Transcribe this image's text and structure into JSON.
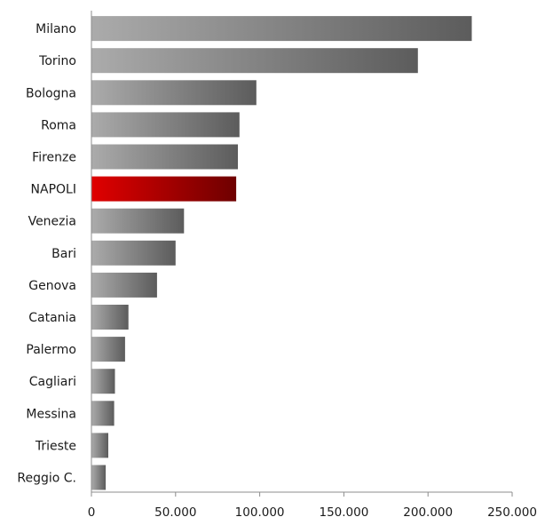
{
  "chart_data": {
    "type": "bar",
    "orientation": "horizontal",
    "categories": [
      "Milano",
      "Torino",
      "Bologna",
      "Roma",
      "Firenze",
      "NAPOLI",
      "Venezia",
      "Bari",
      "Genova",
      "Catania",
      "Palermo",
      "Cagliari",
      "Messina",
      "Trieste",
      "Reggio C."
    ],
    "values": [
      226000,
      194000,
      98000,
      88000,
      87000,
      86000,
      55000,
      50000,
      39000,
      22000,
      20000,
      14000,
      13500,
      10000,
      8500
    ],
    "highlight": "NAPOLI",
    "colors": {
      "bar_light": "#ababab",
      "bar_dark": "#5c5c5c",
      "highlight_light": "#e00000",
      "highlight_dark": "#6e0000",
      "axis": "#8c8c8c"
    },
    "xlim": [
      0,
      250000
    ],
    "xticks": [
      0,
      50000,
      100000,
      150000,
      200000,
      250000
    ],
    "xtick_labels": [
      "0",
      "50.000",
      "100.000",
      "150.000",
      "200.000",
      "250.000"
    ],
    "grid": false,
    "title": "",
    "xlabel": "",
    "ylabel": ""
  }
}
